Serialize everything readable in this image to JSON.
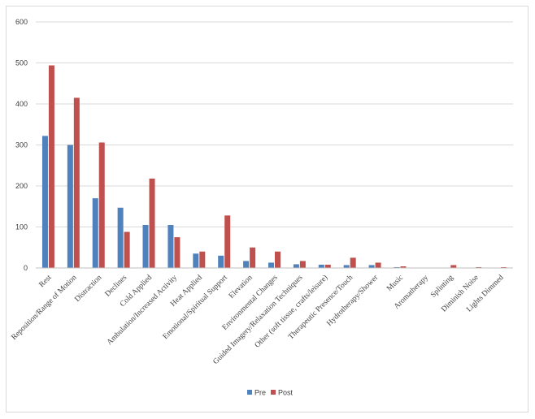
{
  "chart_data": {
    "type": "bar",
    "categories": [
      "Rest",
      "Reposition/Range of Motion",
      "Distraction",
      "Declines",
      "Cold Applied",
      "Ambulation/Increased Activity",
      "Heat Applied",
      "Emotional/Spiritual Support",
      "Elevation",
      "Environmental Changes",
      "Guided Imagery/Relaxation Techniques",
      "Other (soft tissue, crafts/leisure)",
      "Therapeutic Presence/Touch",
      "Hydrotherapy/Shower",
      "Music",
      "Aromatherapy",
      "Splinting",
      "Diminish Noise",
      "Lights Dimmed"
    ],
    "series": [
      {
        "name": "Pre",
        "color": "#4f81bd",
        "values": [
          322,
          300,
          170,
          147,
          105,
          105,
          35,
          30,
          17,
          13,
          9,
          8,
          7,
          7,
          2,
          0,
          0,
          0,
          0
        ]
      },
      {
        "name": "Post",
        "color": "#c0504d",
        "values": [
          494,
          415,
          306,
          88,
          218,
          75,
          40,
          128,
          50,
          40,
          17,
          8,
          25,
          13,
          4,
          0,
          7,
          2,
          2
        ]
      }
    ],
    "ylim": [
      0,
      600
    ],
    "yticks": [
      0,
      100,
      200,
      300,
      400,
      500,
      600
    ],
    "grid": true,
    "legend_position": "bottom"
  }
}
